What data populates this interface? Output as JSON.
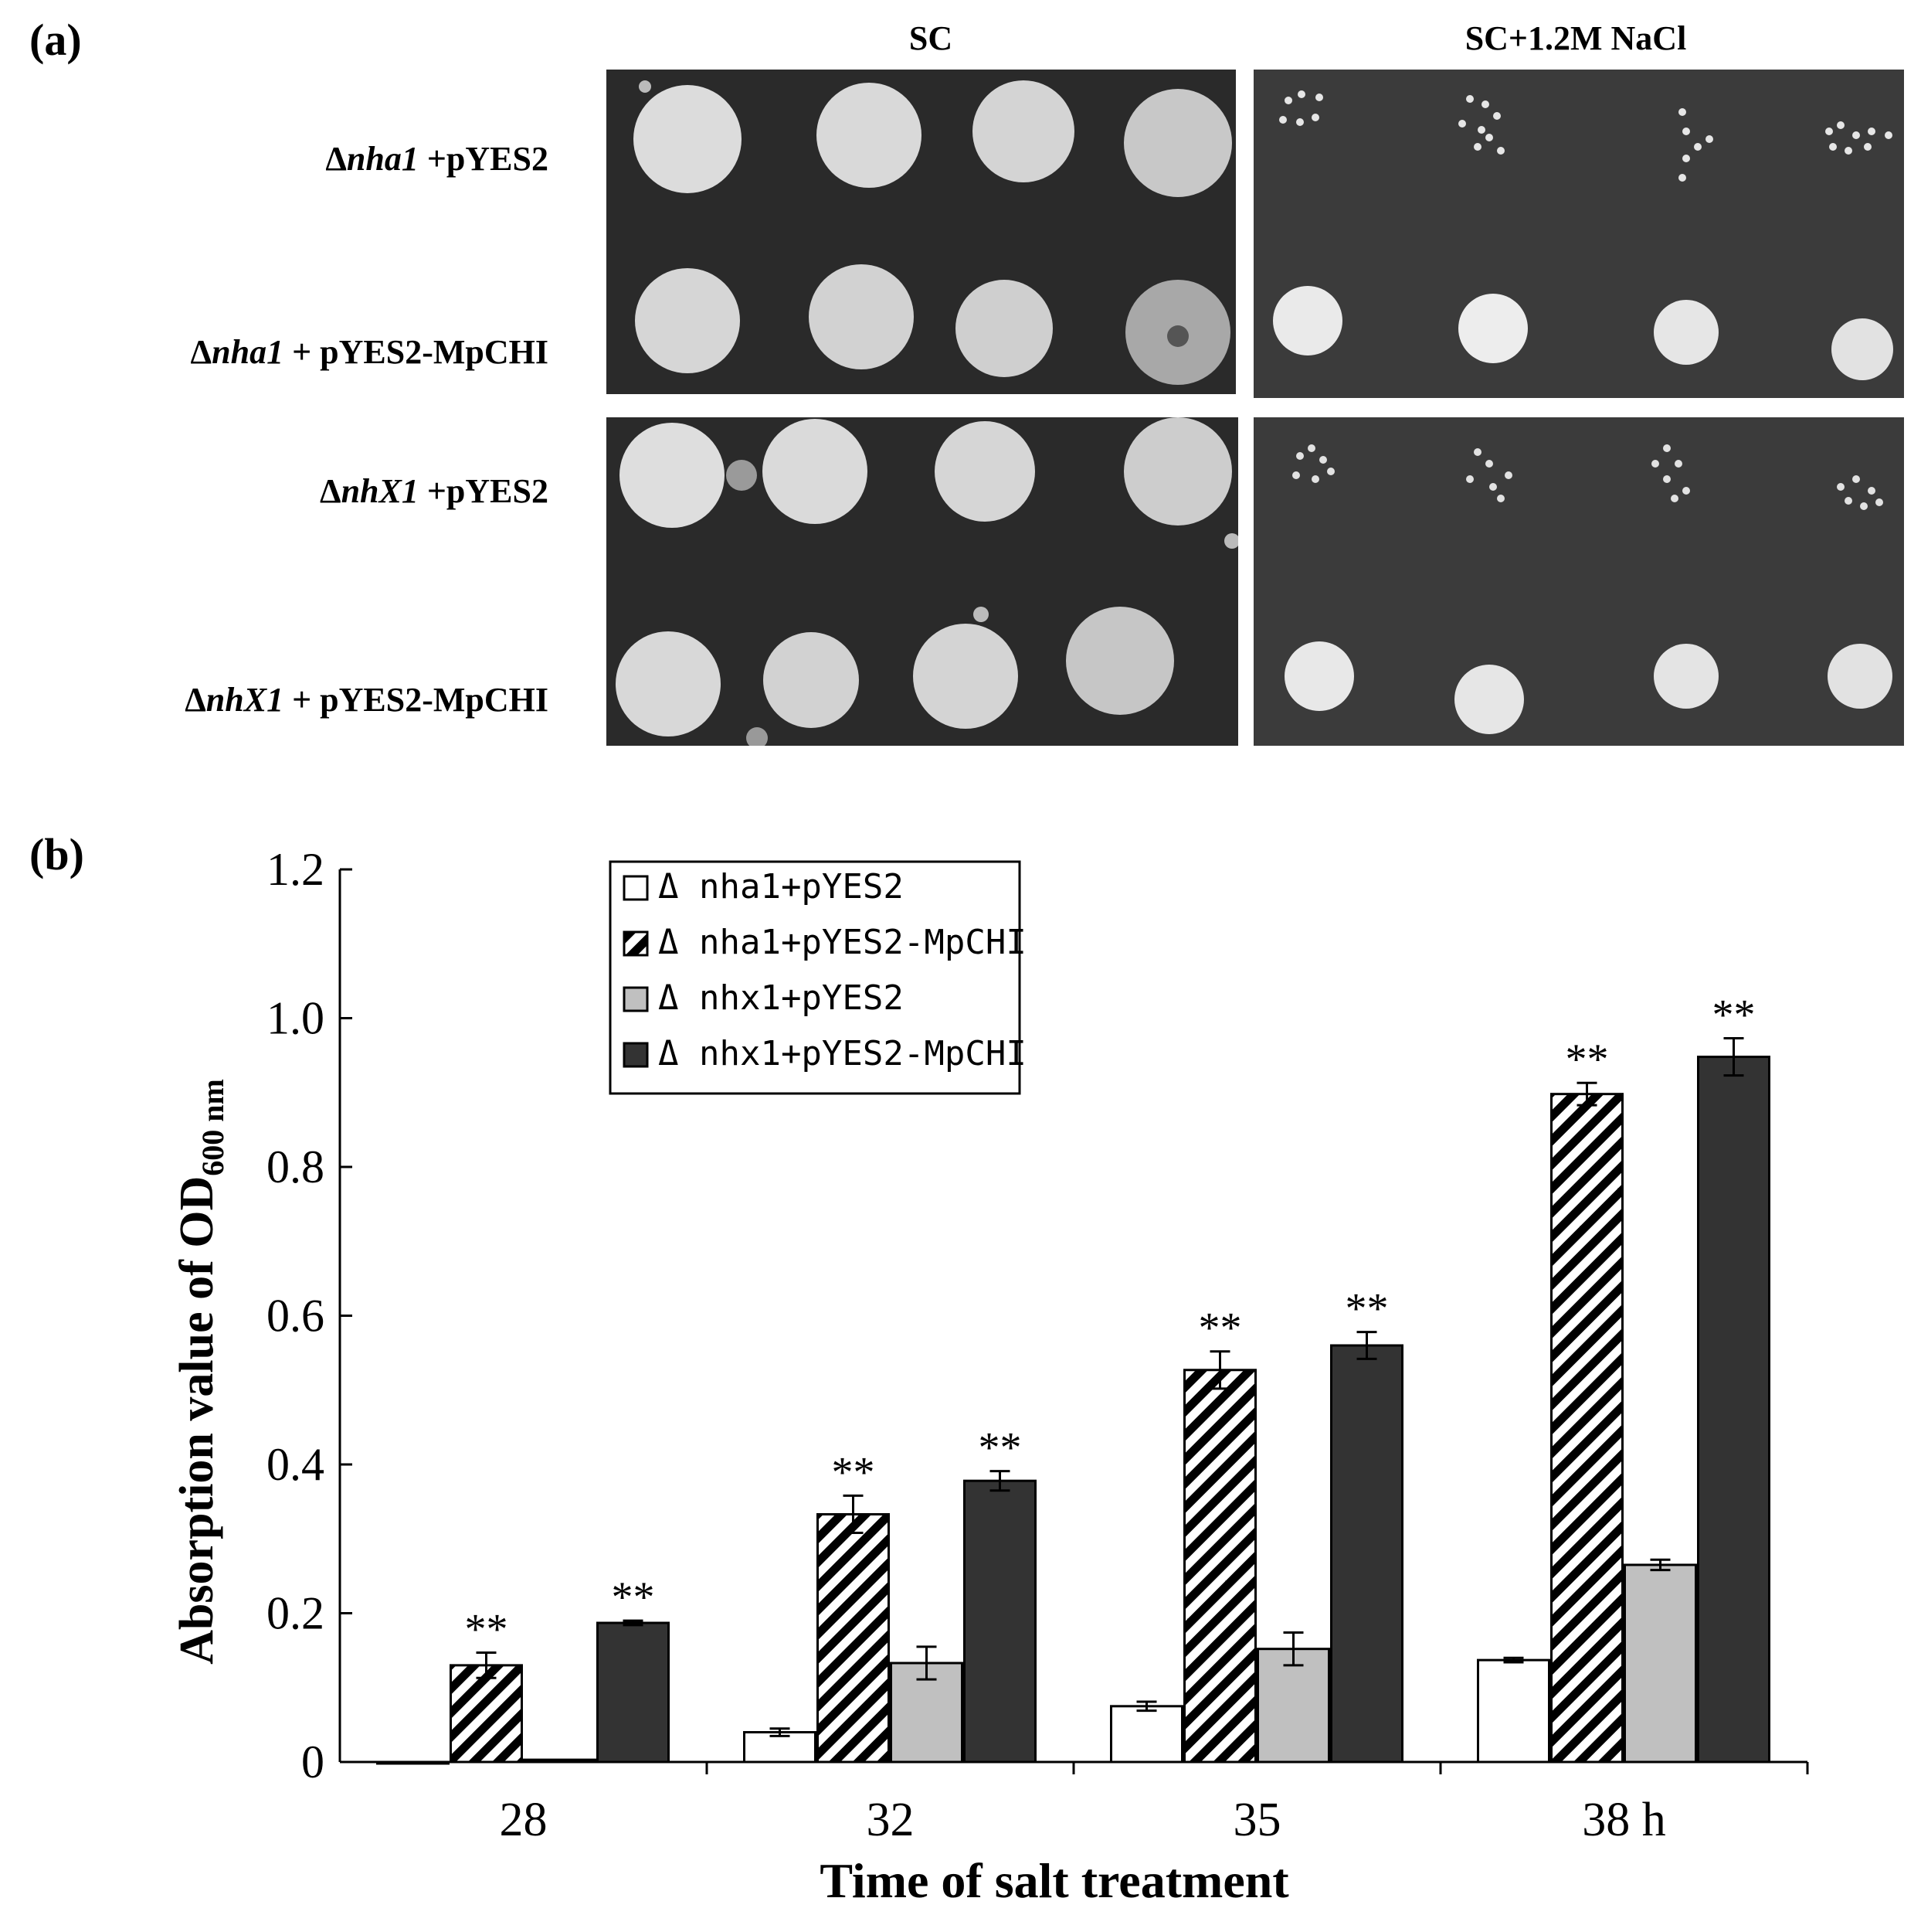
{
  "panel_a": {
    "letter": "(a)",
    "columns": [
      "SC",
      "SC+1.2M NaCl"
    ],
    "rows": [
      {
        "delta": "Δ",
        "gene": "nha1",
        "plasmid": " +pYES2"
      },
      {
        "delta": "Δ",
        "gene": "nha1",
        "plasmid": " + pYES2-MpCHI"
      },
      {
        "delta": "Δ",
        "gene": "nhX1",
        "plasmid": " +pYES2"
      },
      {
        "delta": "Δ",
        "gene": "nhX1",
        "plasmid": " + pYES2-MpCHI"
      }
    ],
    "colors": {
      "plate": "#2b2b2b",
      "colony": "#d8d8d8",
      "salt_plate": "#3d3d3d"
    }
  },
  "panel_b": {
    "letter": "(b)"
  },
  "chart_data": {
    "type": "bar",
    "title": "",
    "xlabel": "Time of salt treatment",
    "ylabel_main": "Absorption value of OD",
    "ylabel_sub": "600 nm",
    "categories": [
      "28",
      "32",
      "35",
      "38 h"
    ],
    "ylim": [
      0,
      1.2
    ],
    "yticks": [
      "0",
      "0.2",
      "0.4",
      "0.6",
      "0.8",
      "1.0",
      "1.2"
    ],
    "ytick_values": [
      0,
      0.2,
      0.4,
      0.6,
      0.8,
      1.0,
      1.2
    ],
    "significance_mark": "**",
    "series": [
      {
        "name": "Δ nha1+pYES2",
        "values": [
          0.0,
          0.04,
          0.075,
          0.137
        ],
        "errors": [
          0.0,
          0.005,
          0.006,
          0.003
        ],
        "fill": "#ffffff",
        "pattern": "none",
        "significant": [
          false,
          false,
          false,
          false
        ]
      },
      {
        "name": "Δ nha1+pYES2-MpCHI",
        "values": [
          0.13,
          0.333,
          0.527,
          0.898
        ],
        "errors": [
          0.017,
          0.025,
          0.025,
          0.015
        ],
        "fill": "#ffffff",
        "pattern": "hatch",
        "significant": [
          true,
          true,
          true,
          true
        ]
      },
      {
        "name": "Δ nhx1+pYES2",
        "values": [
          0.003,
          0.133,
          0.152,
          0.265
        ],
        "errors": [
          0.0,
          0.022,
          0.022,
          0.007
        ],
        "fill": "#c0c0c0",
        "pattern": "none",
        "significant": [
          false,
          false,
          false,
          false
        ]
      },
      {
        "name": "Δ nhx1+pYES2-MpCHI",
        "values": [
          0.187,
          0.378,
          0.56,
          0.948
        ],
        "errors": [
          0.003,
          0.013,
          0.018,
          0.025
        ],
        "fill": "#333333",
        "pattern": "none",
        "significant": [
          true,
          true,
          true,
          true
        ]
      }
    ]
  }
}
